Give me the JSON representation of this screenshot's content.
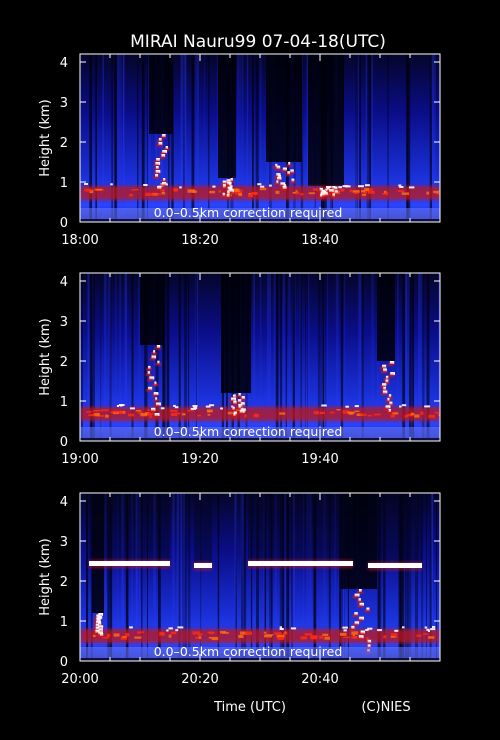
{
  "title": "MIRAI Nauru99 07-04-18(UTC)",
  "xlabel": "Time (UTC)",
  "credit": "(C)NIES",
  "chart_data": [
    {
      "type": "heatmap",
      "panel": 1,
      "ylabel": "Height (km)",
      "yticks": [
        0,
        1,
        2,
        3,
        4
      ],
      "ylim": [
        0,
        4.2
      ],
      "xticks": [
        "18:00",
        "18:20",
        "18:40"
      ],
      "xlim_minutes": [
        0,
        60
      ],
      "annotation": "0.0–0.5km correction required",
      "cloud_base_km": 0.75,
      "features": [
        {
          "t": 13.5,
          "h": 2.2,
          "w": 2.0,
          "d": 1.3
        },
        {
          "t": 24.5,
          "h": 1.1,
          "w": 1.5,
          "d": 0.4
        },
        {
          "t": 34.0,
          "h": 1.5,
          "w": 3.0,
          "d": 0.6
        },
        {
          "t": 41.0,
          "h": 0.9,
          "w": 3.0,
          "d": 0.2
        }
      ]
    },
    {
      "type": "heatmap",
      "panel": 2,
      "ylabel": "Height (km)",
      "yticks": [
        0,
        1,
        2,
        3,
        4
      ],
      "ylim": [
        0,
        4.2
      ],
      "xticks": [
        "19:00",
        "19:20",
        "19:40"
      ],
      "xlim_minutes": [
        0,
        60
      ],
      "annotation": "0.0–0.5km correction required",
      "cloud_base_km": 0.7,
      "features": [
        {
          "t": 12.0,
          "h": 2.4,
          "w": 2.0,
          "d": 1.7
        },
        {
          "t": 26.0,
          "h": 1.2,
          "w": 2.5,
          "d": 0.5
        },
        {
          "t": 51.0,
          "h": 2.0,
          "w": 1.5,
          "d": 1.2
        }
      ]
    },
    {
      "type": "heatmap",
      "panel": 3,
      "ylabel": "Height (km)",
      "yticks": [
        0,
        1,
        2,
        3,
        4
      ],
      "ylim": [
        0,
        4.2
      ],
      "xticks": [
        "20:00",
        "20:20",
        "20:40"
      ],
      "xlim_minutes": [
        0,
        60
      ],
      "annotation": "0.0–0.5km correction required",
      "cloud_base_km": 0.65,
      "upper_layers": [
        {
          "t0": 1.5,
          "t1": 15.0,
          "h": 2.45
        },
        {
          "t0": 19.0,
          "t1": 22.0,
          "h": 2.4
        },
        {
          "t0": 28.0,
          "t1": 45.5,
          "h": 2.45
        },
        {
          "t0": 48.0,
          "t1": 57.0,
          "h": 2.4
        }
      ],
      "features": [
        {
          "t": 3.0,
          "h": 1.2,
          "w": 1.0,
          "d": 0.5
        },
        {
          "t": 46.5,
          "h": 1.8,
          "w": 3.0,
          "d": 1.5
        }
      ]
    }
  ]
}
